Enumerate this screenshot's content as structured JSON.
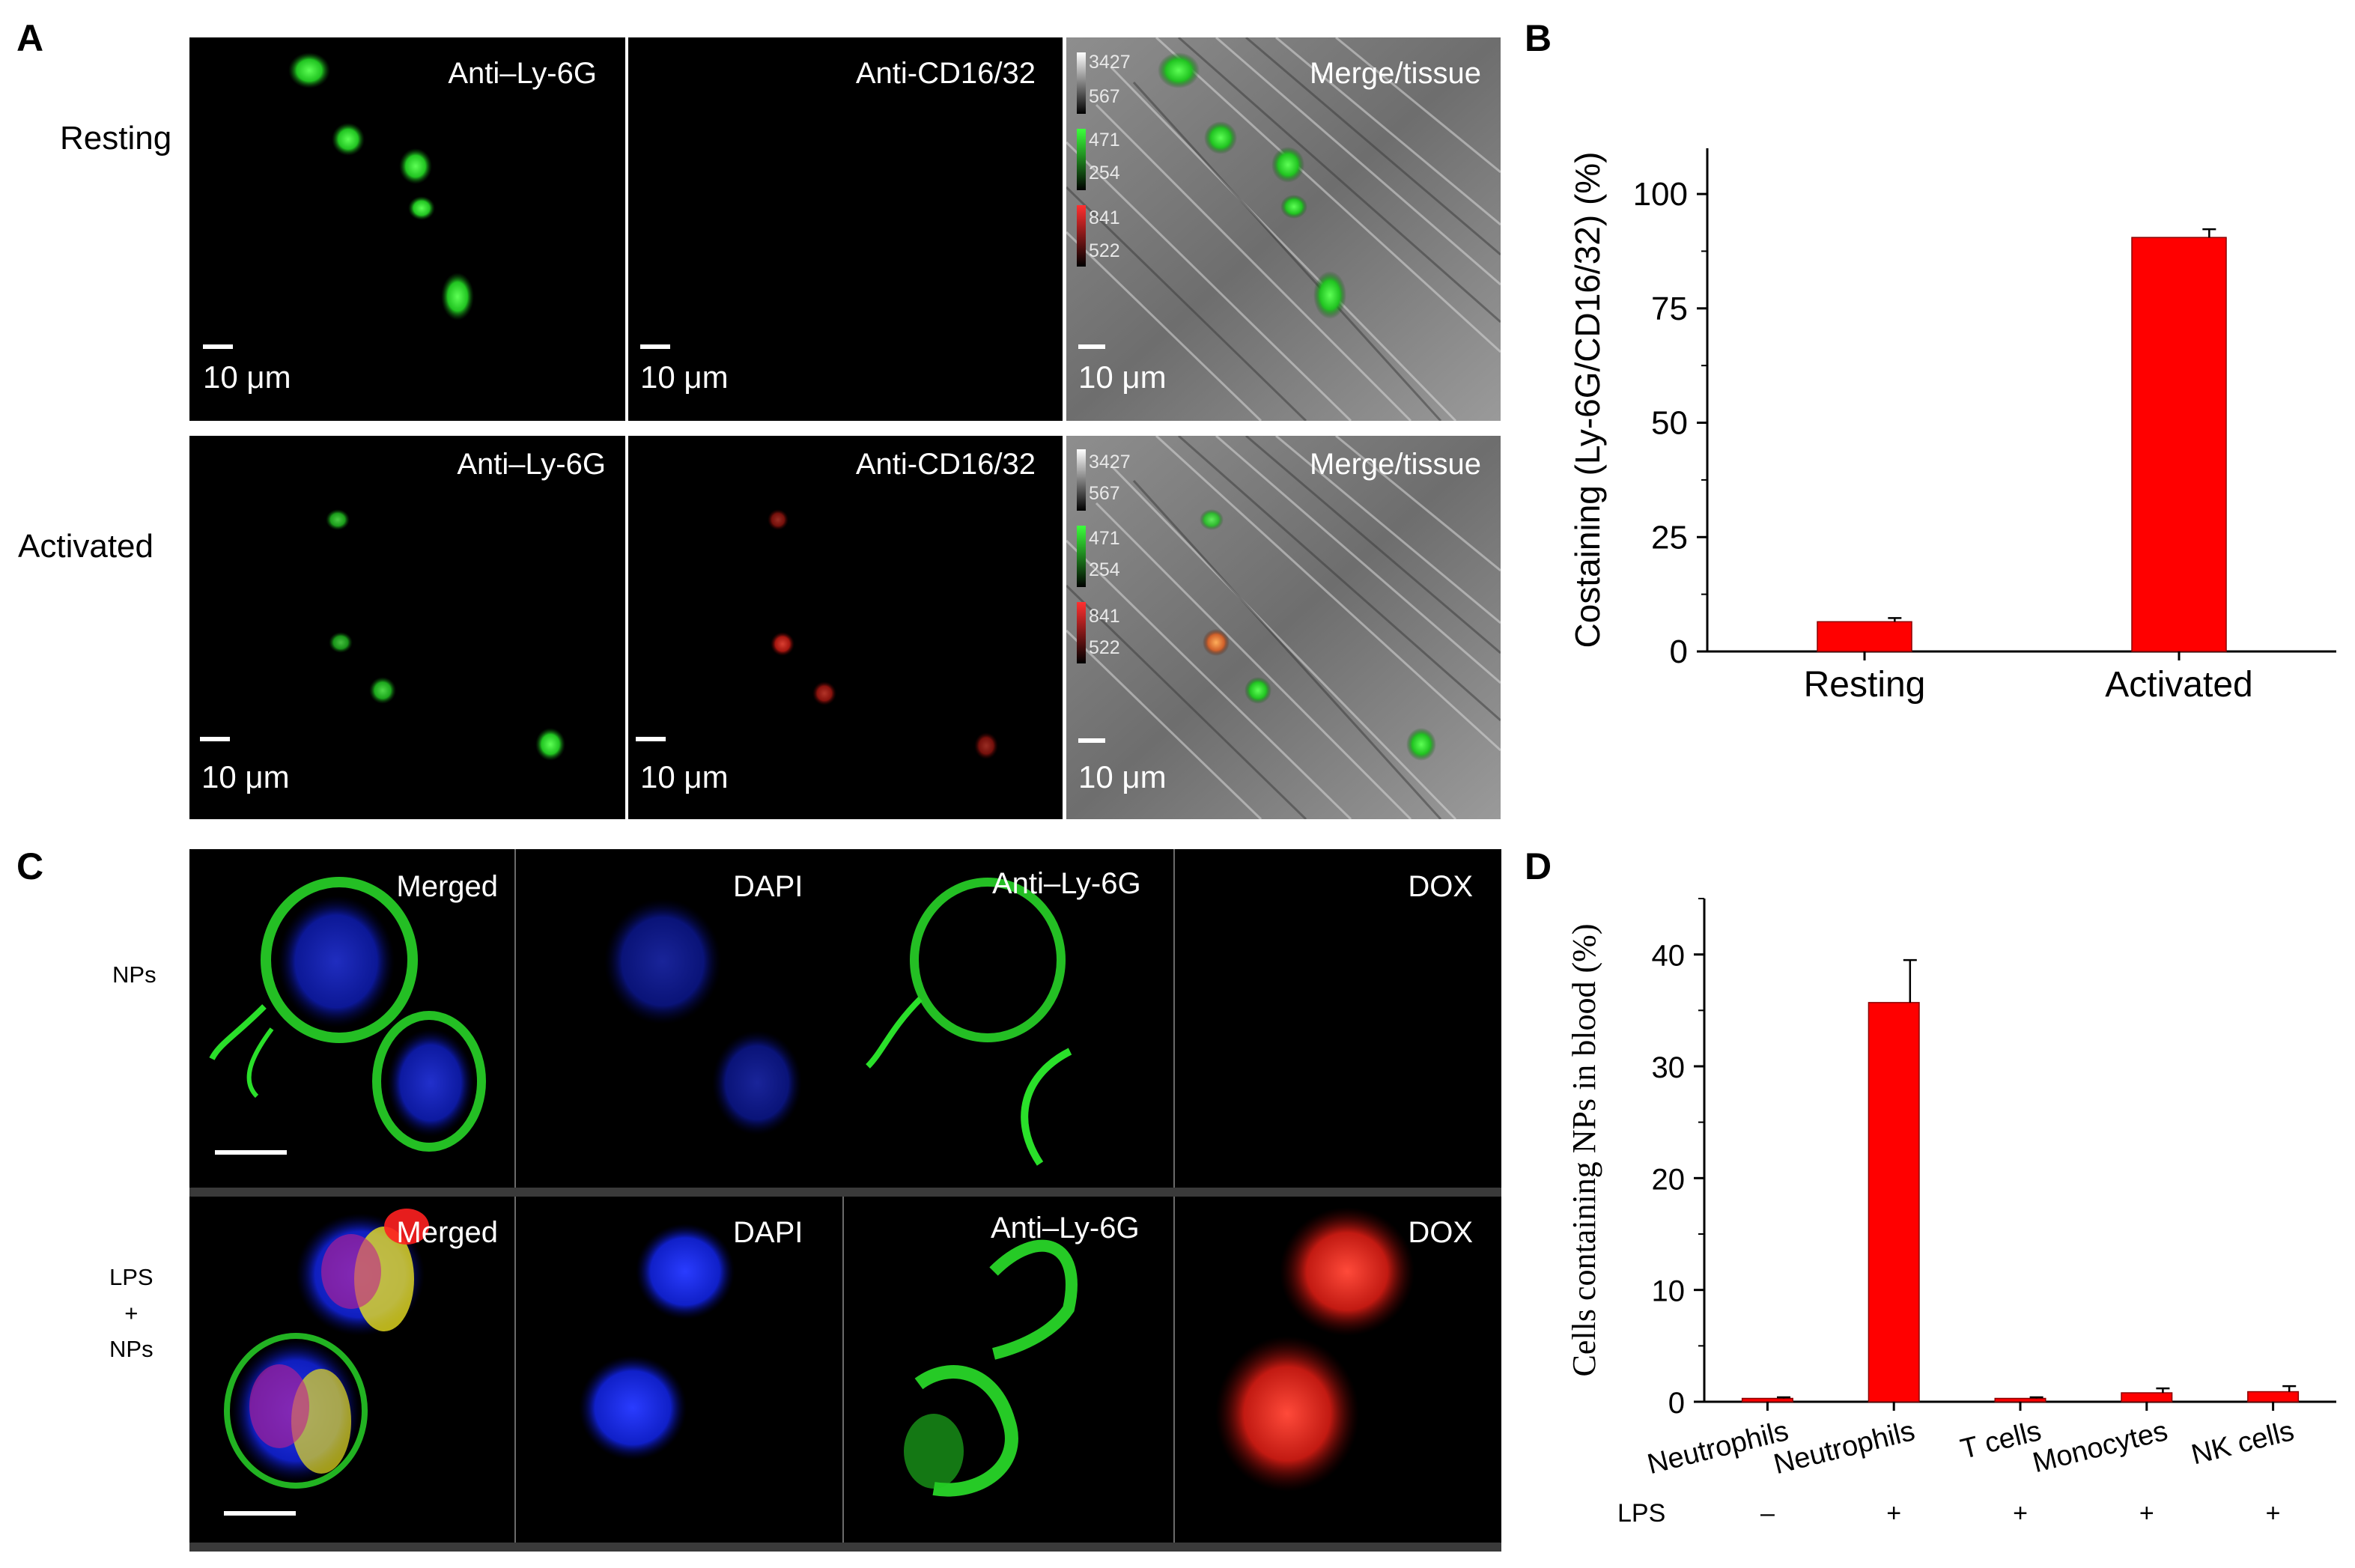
{
  "panel_A": {
    "letter": "A",
    "rows": [
      "Resting",
      "Activated"
    ],
    "channels": [
      "Anti–Ly-6G",
      "Anti-CD16/32",
      "Merge/tissue"
    ],
    "scale_label": "10 μm",
    "lut_values": {
      "gray": [
        "3427",
        "567"
      ],
      "green": [
        "471",
        "254"
      ],
      "red": [
        "841",
        "522"
      ]
    }
  },
  "panel_B": {
    "letter": "B"
  },
  "panel_C": {
    "letter": "C",
    "rows": [
      "NPs",
      "LPS\n+\nNPs"
    ],
    "channels": [
      "Merged",
      "DAPI",
      "Anti–Ly-6G",
      "DOX"
    ]
  },
  "panel_D": {
    "letter": "D"
  },
  "chart_data": [
    {
      "type": "bar",
      "panel": "B",
      "categories": [
        "Resting",
        "Activated"
      ],
      "values": [
        6.5,
        90.5
      ],
      "errors": [
        0.8,
        1.8
      ],
      "ylabel": "Costaining (Ly-6G/CD16/32) (%)",
      "xlabel": "",
      "ylim": [
        0,
        110
      ],
      "yticks": [
        0,
        25,
        50,
        75,
        100
      ],
      "bar_color": "#ff0000"
    },
    {
      "type": "bar",
      "panel": "D",
      "categories": [
        "Neutrophils",
        "Neutrophils",
        "T cells",
        "Monocytes",
        "NK cells"
      ],
      "lps": [
        "–",
        "+",
        "+",
        "+",
        "+"
      ],
      "lps_label": "LPS",
      "values": [
        0.3,
        35.7,
        0.3,
        0.8,
        0.9
      ],
      "errors": [
        0.1,
        3.8,
        0.1,
        0.4,
        0.5
      ],
      "ylabel": "Cells containing NPs in blood (%)",
      "xlabel": "",
      "ylim": [
        0,
        45
      ],
      "yticks": [
        0,
        10,
        20,
        30,
        40
      ],
      "bar_color": "#ff0000"
    }
  ]
}
